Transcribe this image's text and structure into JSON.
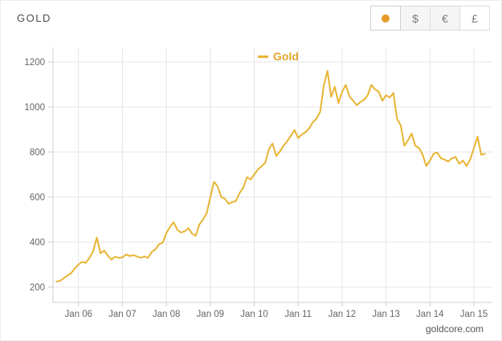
{
  "header": {
    "title": "GOLD",
    "currency_buttons": [
      {
        "id": "gold",
        "label": "",
        "type": "dot",
        "active": true,
        "style": "selected"
      },
      {
        "id": "usd",
        "label": "$",
        "type": "text",
        "active": false,
        "style": "default"
      },
      {
        "id": "eur",
        "label": "€",
        "type": "text",
        "active": false,
        "style": "default"
      },
      {
        "id": "gbp",
        "label": "£",
        "type": "text",
        "active": false,
        "style": "plain"
      }
    ]
  },
  "legend": {
    "label": "Gold"
  },
  "footer": {
    "credit": "goldcore.com"
  },
  "colors": {
    "line": "#e8b434",
    "legend_text": "#e2a62c",
    "dot": "#e59a28",
    "grid": "#e4e4e4",
    "axis": "#cccccc",
    "tick_label": "#666666"
  },
  "chart_data": {
    "type": "line",
    "title": "GOLD",
    "xlabel": "",
    "ylabel": "",
    "legend_position": "top-center",
    "grid": true,
    "xlim": [
      2005.42,
      2015.42
    ],
    "ylim": [
      200,
      1200
    ],
    "y_ticks": [
      200,
      400,
      600,
      800,
      1000,
      1200
    ],
    "x_tick_positions": [
      2006,
      2007,
      2008,
      2009,
      2010,
      2011,
      2012,
      2013,
      2014,
      2015
    ],
    "x_tick_labels": [
      "Jan 06",
      "Jan 07",
      "Jan 08",
      "Jan 09",
      "Jan 10",
      "Jan 11",
      "Jan 12",
      "Jan 13",
      "Jan 14",
      "Jan 15"
    ],
    "series": [
      {
        "name": "Gold",
        "x_start": 2005.5,
        "x_step_years": 0.0833333,
        "values": [
          225,
          228,
          240,
          252,
          262,
          283,
          300,
          312,
          308,
          330,
          360,
          420,
          350,
          362,
          340,
          322,
          335,
          330,
          332,
          345,
          338,
          342,
          336,
          330,
          336,
          330,
          356,
          368,
          390,
          398,
          440,
          468,
          488,
          455,
          442,
          448,
          462,
          438,
          428,
          478,
          500,
          528,
          598,
          668,
          648,
          600,
          592,
          570,
          578,
          582,
          618,
          642,
          688,
          678,
          700,
          722,
          736,
          752,
          812,
          838,
          782,
          802,
          828,
          848,
          872,
          898,
          862,
          878,
          888,
          905,
          932,
          948,
          978,
          1095,
          1160,
          1045,
          1090,
          1018,
          1068,
          1098,
          1048,
          1028,
          1008,
          1022,
          1032,
          1052,
          1098,
          1078,
          1068,
          1028,
          1052,
          1042,
          1062,
          948,
          918,
          828,
          852,
          882,
          828,
          818,
          788,
          738,
          762,
          792,
          798,
          772,
          766,
          758,
          772,
          778,
          748,
          762,
          738,
          768,
          818,
          868,
          788,
          792
        ]
      }
    ]
  }
}
